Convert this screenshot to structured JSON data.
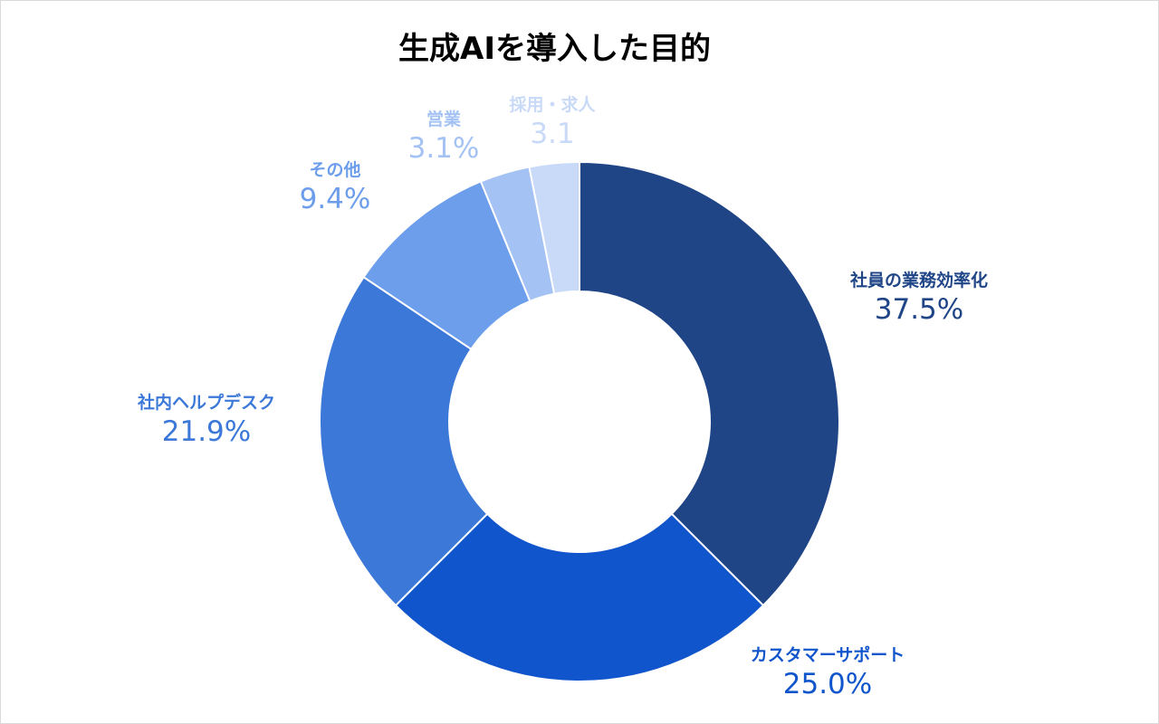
{
  "chart_data": {
    "type": "pie",
    "variant": "donut",
    "title": "生成AIを導入した目的",
    "legend": "none",
    "slices": [
      {
        "label": "社員の業務効率化",
        "value": 37.5,
        "value_label": "37.5%",
        "color": "#1f4587"
      },
      {
        "label": "カスタマーサポート",
        "value": 25.0,
        "value_label": "25.0%",
        "color": "#1155cc"
      },
      {
        "label": "社内ヘルプデスク",
        "value": 21.9,
        "value_label": "21.9%",
        "color": "#3c78d8"
      },
      {
        "label": "その他",
        "value": 9.4,
        "value_label": "9.4%",
        "color": "#6d9eeb"
      },
      {
        "label": "営業",
        "value": 3.1,
        "value_label": "3.1%",
        "color": "#a4c2f4"
      },
      {
        "label": "採用・求人",
        "value": 3.1,
        "value_label": "3.1",
        "color": "#c9daf8"
      }
    ]
  }
}
